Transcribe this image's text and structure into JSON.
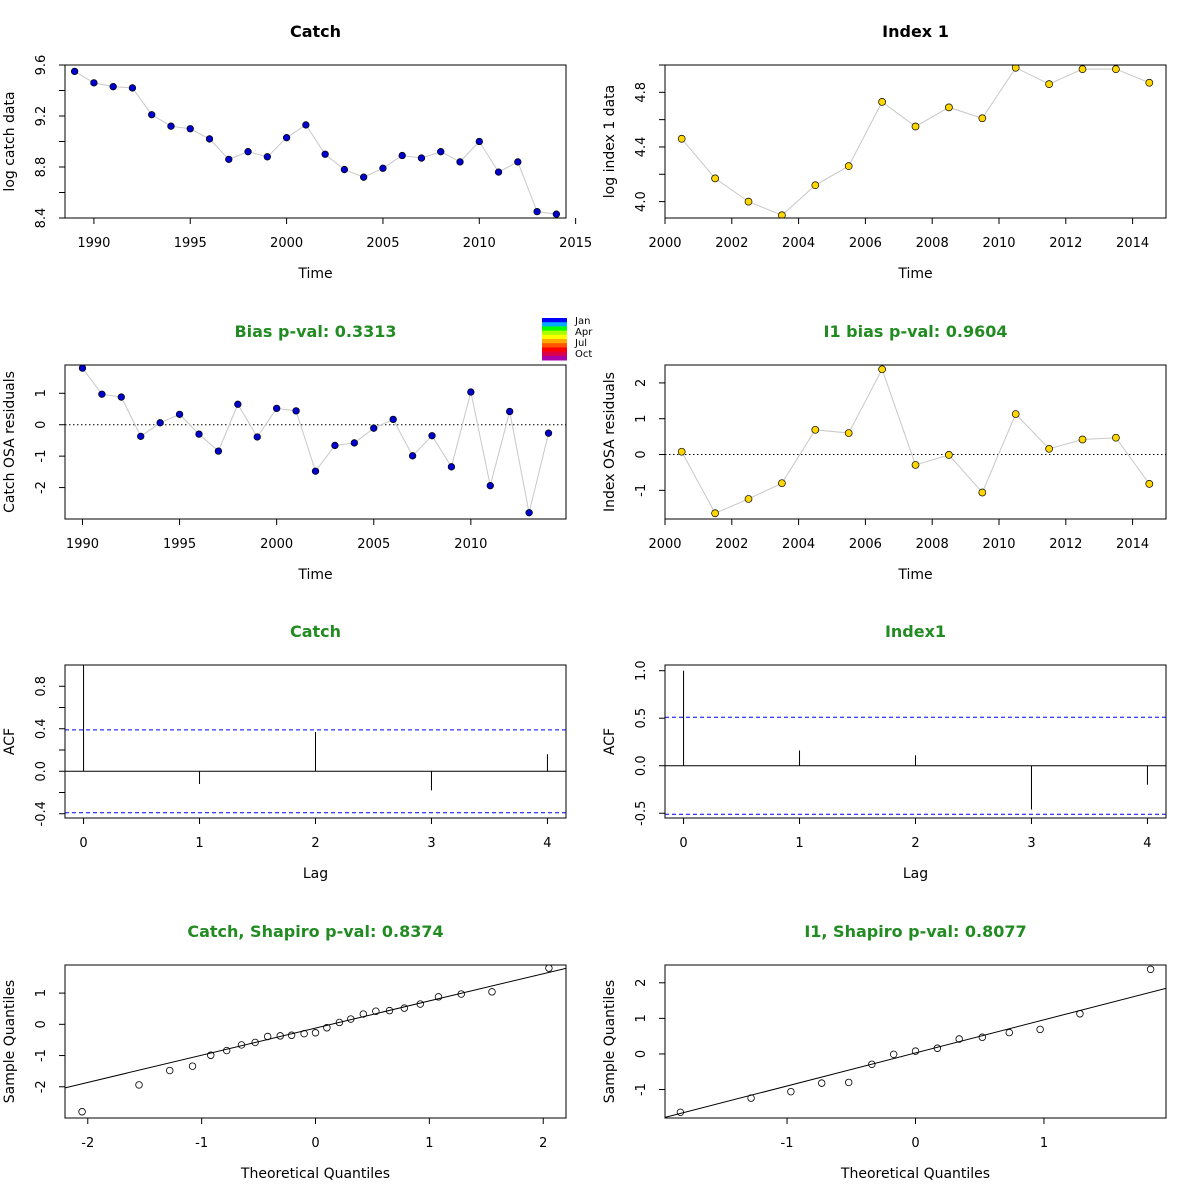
{
  "colors": {
    "title_black": "#000000",
    "title_green": "#228b22",
    "catch_point": "#0000cd",
    "index_point": "#ffd700",
    "connector": "#c8c8c8",
    "ref_blue": "#0000ff"
  },
  "legend": {
    "labels": [
      "Jan",
      "Apr",
      "Jul",
      "Oct"
    ],
    "colors": [
      "#0000ff",
      "#00aaff",
      "#00ff00",
      "#aaff00",
      "#ffff00",
      "#ffaa00",
      "#ff5500",
      "#ff0000",
      "#dd0044",
      "#aa00aa"
    ]
  },
  "chart_data": [
    {
      "type": "line",
      "title": "Catch",
      "title_color": "black",
      "xlabel": "Time",
      "ylabel": "log catch data",
      "xlim": [
        1988.5,
        2014.5
      ],
      "ylim": [
        8.4,
        9.6
      ],
      "xticks": [
        "1990",
        "1995",
        "2000",
        "2005",
        "2010",
        "2015"
      ],
      "yticks": [
        "8.4",
        "8.8",
        "9.2",
        "9.6"
      ],
      "xtick_values": [
        1990,
        1995,
        2000,
        2005,
        2010,
        2015
      ],
      "ytick_values": [
        8.4,
        8.8,
        9.2,
        9.6
      ],
      "minor_yticks": [
        8.6,
        9.0,
        9.4
      ],
      "point_color": "catch",
      "connect": true,
      "x": [
        1989,
        1990,
        1991,
        1992,
        1993,
        1994,
        1995,
        1996,
        1997,
        1998,
        1999,
        2000,
        2001,
        2002,
        2003,
        2004,
        2005,
        2006,
        2007,
        2008,
        2009,
        2010,
        2011,
        2012,
        2013,
        2014
      ],
      "y": [
        9.55,
        9.46,
        9.43,
        9.42,
        9.21,
        9.12,
        9.1,
        9.02,
        8.86,
        8.92,
        8.88,
        9.03,
        9.13,
        8.9,
        8.78,
        8.72,
        8.79,
        8.89,
        8.87,
        8.92,
        8.84,
        9.0,
        8.76,
        8.84,
        8.45,
        8.43
      ]
    },
    {
      "type": "line",
      "title": "Index 1",
      "title_color": "black",
      "xlabel": "Time",
      "ylabel": "log index 1 data",
      "xlim": [
        2000,
        2015
      ],
      "ylim": [
        3.88,
        5.0
      ],
      "xticks": [
        "2000",
        "2002",
        "2004",
        "2006",
        "2008",
        "2010",
        "2012",
        "2014"
      ],
      "yticks": [
        "4.0",
        "4.4",
        "4.8"
      ],
      "xtick_values": [
        2000,
        2002,
        2004,
        2006,
        2008,
        2010,
        2012,
        2014
      ],
      "ytick_values": [
        4.0,
        4.4,
        4.8
      ],
      "minor_yticks": [
        4.2,
        4.6,
        5.0
      ],
      "point_color": "index",
      "connect": true,
      "x": [
        2000.5,
        2001.5,
        2002.5,
        2003.5,
        2004.5,
        2005.5,
        2006.5,
        2007.5,
        2008.5,
        2009.5,
        2010.5,
        2011.5,
        2012.5,
        2013.5,
        2014.5
      ],
      "y": [
        4.46,
        4.17,
        4.0,
        3.9,
        4.12,
        4.26,
        4.73,
        4.55,
        4.69,
        4.61,
        4.98,
        4.86,
        4.97,
        4.97,
        4.87
      ]
    },
    {
      "type": "line",
      "title": "Bias p-val: 0.3313",
      "title_color": "green",
      "xlabel": "Time",
      "ylabel": "Catch OSA residuals",
      "xlim": [
        1989.1,
        2014.9
      ],
      "ylim": [
        -3.0,
        1.9
      ],
      "xticks": [
        "1990",
        "1995",
        "2000",
        "2005",
        "2010"
      ],
      "yticks": [
        "-2",
        "-1",
        "0",
        "1"
      ],
      "xtick_values": [
        1990,
        1995,
        2000,
        2005,
        2010
      ],
      "ytick_values": [
        -2,
        -1,
        0,
        1
      ],
      "point_color": "catch",
      "connect": true,
      "hline": 0,
      "hline_style": "dotted",
      "x": [
        1990,
        1991,
        1992,
        1993,
        1994,
        1995,
        1996,
        1997,
        1998,
        1999,
        2000,
        2001,
        2002,
        2003,
        2004,
        2005,
        2006,
        2007,
        2008,
        2009,
        2010,
        2011,
        2012,
        2013,
        2014
      ],
      "y": [
        1.8,
        0.97,
        0.88,
        -0.37,
        0.06,
        0.33,
        -0.3,
        -0.84,
        0.65,
        -0.39,
        0.52,
        0.44,
        -1.48,
        -0.66,
        -0.58,
        -0.11,
        0.17,
        -0.99,
        -0.35,
        -1.34,
        1.04,
        -1.94,
        0.42,
        -2.8,
        -0.27
      ]
    },
    {
      "type": "line",
      "title": "I1 bias p-val: 0.9604",
      "title_color": "green",
      "xlabel": "Time",
      "ylabel": "Index OSA residuals",
      "xlim": [
        2000,
        2015
      ],
      "ylim": [
        -1.8,
        2.5
      ],
      "xticks": [
        "2000",
        "2002",
        "2004",
        "2006",
        "2008",
        "2010",
        "2012",
        "2014"
      ],
      "yticks": [
        "-1",
        "0",
        "1",
        "2"
      ],
      "xtick_values": [
        2000,
        2002,
        2004,
        2006,
        2008,
        2010,
        2012,
        2014
      ],
      "ytick_values": [
        -1,
        0,
        1,
        2
      ],
      "point_color": "index",
      "connect": true,
      "hline": 0,
      "hline_style": "dotted",
      "x": [
        2000.5,
        2001.5,
        2002.5,
        2003.5,
        2004.5,
        2005.5,
        2006.5,
        2007.5,
        2008.5,
        2009.5,
        2010.5,
        2011.5,
        2012.5,
        2013.5,
        2014.5
      ],
      "y": [
        0.08,
        -1.64,
        -1.24,
        -0.8,
        0.69,
        0.6,
        2.38,
        -0.29,
        -0.01,
        -1.06,
        1.13,
        0.16,
        0.42,
        0.47,
        -0.82
      ]
    },
    {
      "type": "bar",
      "title": "Catch",
      "title_color": "green",
      "xlabel": "Lag",
      "ylabel": "ACF",
      "xlim": [
        -0.16,
        4.16
      ],
      "ylim": [
        -0.44,
        1.0
      ],
      "xticks": [
        "0",
        "1",
        "2",
        "3",
        "4"
      ],
      "yticks": [
        "-0.4",
        "0.0",
        "0.4",
        "0.8"
      ],
      "xtick_values": [
        0,
        1,
        2,
        3,
        4
      ],
      "ytick_values": [
        -0.4,
        0.0,
        0.4,
        0.8
      ],
      "minor_yticks": [
        -0.2,
        0.2,
        0.6
      ],
      "zero_line": true,
      "ci": [
        0.39,
        -0.39
      ],
      "x": [
        0,
        1,
        2,
        3,
        4
      ],
      "y": [
        1.0,
        -0.12,
        0.37,
        -0.18,
        0.16
      ]
    },
    {
      "type": "bar",
      "title": "Index1",
      "title_color": "green",
      "xlabel": "Lag",
      "ylabel": "ACF",
      "xlim": [
        -0.16,
        4.16
      ],
      "ylim": [
        -0.55,
        1.06
      ],
      "xticks": [
        "0",
        "1",
        "2",
        "3",
        "4"
      ],
      "yticks": [
        "-0.5",
        "0.0",
        "0.5",
        "1.0"
      ],
      "xtick_values": [
        0,
        1,
        2,
        3,
        4
      ],
      "ytick_values": [
        -0.5,
        0.0,
        0.5,
        1.0
      ],
      "zero_line": true,
      "ci": [
        0.51,
        -0.51
      ],
      "x": [
        0,
        1,
        2,
        3,
        4
      ],
      "y": [
        1.0,
        0.16,
        0.11,
        -0.46,
        -0.2
      ]
    },
    {
      "type": "scatter",
      "title": "Catch, Shapiro p-val: 0.8374",
      "title_color": "green",
      "xlabel": "Theoretical Quantiles",
      "ylabel": "Sample Quantiles",
      "xlim": [
        -2.2,
        2.2
      ],
      "ylim": [
        -3.0,
        1.9
      ],
      "xticks": [
        "-2",
        "-1",
        "0",
        "1",
        "2"
      ],
      "yticks": [
        "-2",
        "-1",
        "0",
        "1"
      ],
      "xtick_values": [
        -2,
        -1,
        0,
        1,
        2
      ],
      "ytick_values": [
        -2,
        -1,
        0,
        1
      ],
      "open_points": true,
      "qq_line": {
        "intercept": -0.12,
        "slope": 0.87
      },
      "x": [
        -2.05,
        -1.55,
        -1.28,
        -1.08,
        -0.92,
        -0.78,
        -0.65,
        -0.53,
        -0.42,
        -0.31,
        -0.21,
        -0.1,
        0.0,
        0.1,
        0.21,
        0.31,
        0.42,
        0.53,
        0.65,
        0.78,
        0.92,
        1.08,
        1.28,
        1.55,
        2.05
      ],
      "y": [
        -2.8,
        -1.94,
        -1.48,
        -1.34,
        -0.99,
        -0.84,
        -0.66,
        -0.58,
        -0.39,
        -0.37,
        -0.35,
        -0.3,
        -0.27,
        -0.11,
        0.06,
        0.17,
        0.33,
        0.42,
        0.44,
        0.52,
        0.65,
        0.88,
        0.97,
        1.04,
        1.8
      ]
    },
    {
      "type": "scatter",
      "title": "I1, Shapiro p-val: 0.8077",
      "title_color": "green",
      "xlabel": "Theoretical Quantiles",
      "ylabel": "Sample Quantiles",
      "xlim": [
        -1.95,
        1.95
      ],
      "ylim": [
        -1.8,
        2.5
      ],
      "xticks": [
        "-1",
        "0",
        "1"
      ],
      "yticks": [
        "-1",
        "0",
        "1",
        "2"
      ],
      "xtick_values": [
        -1,
        0,
        1
      ],
      "ytick_values": [
        -1,
        0,
        1,
        2
      ],
      "open_points": true,
      "qq_line": {
        "intercept": 0.03,
        "slope": 0.93
      },
      "x": [
        -1.83,
        -1.28,
        -0.97,
        -0.73,
        -0.52,
        -0.34,
        -0.17,
        0.0,
        0.17,
        0.34,
        0.52,
        0.73,
        0.97,
        1.28,
        1.83
      ],
      "y": [
        -1.64,
        -1.24,
        -1.06,
        -0.82,
        -0.8,
        -0.29,
        -0.01,
        0.08,
        0.16,
        0.42,
        0.47,
        0.6,
        0.69,
        1.13,
        2.38
      ]
    }
  ]
}
